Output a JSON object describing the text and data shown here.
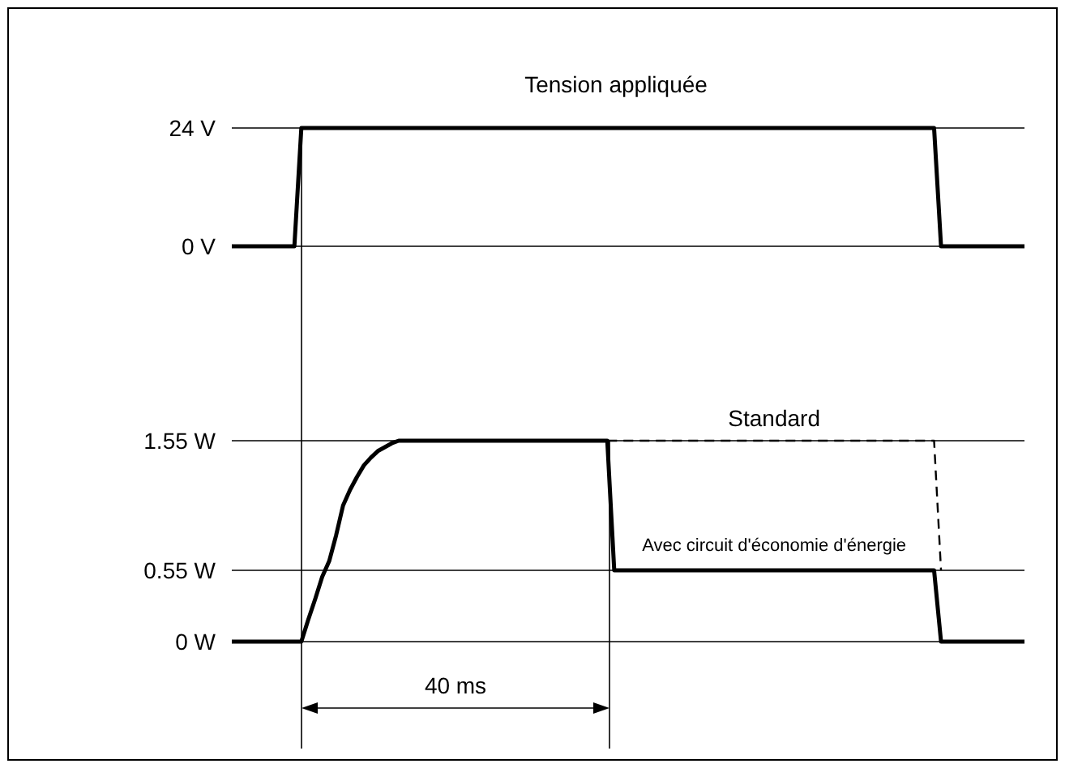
{
  "chart_data": [
    {
      "type": "line",
      "title": "Tension appliquée",
      "categories": [
        null,
        null,
        null,
        null,
        null,
        null,
        null,
        null,
        null,
        null,
        null,
        null,
        null,
        null,
        null,
        null,
        null,
        null,
        null,
        null,
        null,
        null,
        null,
        null,
        null,
        null,
        null,
        null,
        null,
        null,
        null,
        null,
        null,
        null,
        null,
        null,
        null,
        null,
        null,
        null,
        null,
        null,
        null,
        null,
        null,
        null,
        null,
        null,
        null,
        null,
        null,
        null,
        null,
        null,
        null,
        null,
        null,
        null,
        null,
        null,
        null,
        null,
        null,
        null,
        null,
        null,
        null,
        null,
        null,
        null,
        null,
        null,
        null,
        null,
        null,
        null,
        null,
        null,
        null,
        null,
        null,
        null,
        null,
        null,
        null,
        null,
        null,
        null,
        null,
        null,
        null,
        null,
        null,
        null,
        null,
        null,
        null,
        null,
        null,
        null,
        null,
        null,
        null,
        null,
        null,
        null,
        null,
        null,
        null,
        null,
        null,
        null,
        null,
        null,
        null
      ],
      "ylim": [
        0,
        24
      ],
      "yticks": [
        {
          "value": 0,
          "label": "0 V"
        },
        {
          "value": 24,
          "label": "24 V"
        }
      ],
      "tick_labels": "y",
      "grid": "y",
      "legend": false,
      "series": [
        {
          "color": "#000000",
          "values": [
            0,
            0,
            0,
            0,
            0,
            0,
            0,
            0,
            0,
            0,
            24,
            24,
            24,
            24,
            24,
            24,
            24,
            24,
            24,
            24,
            24,
            24,
            24,
            24,
            24,
            24,
            24,
            24,
            24,
            24,
            24,
            24,
            24,
            24,
            24,
            24,
            24,
            24,
            24,
            24,
            24,
            24,
            24,
            24,
            24,
            24,
            24,
            24,
            24,
            24,
            24,
            24,
            24,
            24,
            24,
            24,
            24,
            24,
            24,
            24,
            24,
            24,
            24,
            24,
            24,
            24,
            24,
            24,
            24,
            24,
            24,
            24,
            24,
            24,
            24,
            24,
            24,
            24,
            24,
            24,
            24,
            24,
            24,
            24,
            24,
            24,
            24,
            24,
            24,
            24,
            24,
            24,
            24,
            24,
            24,
            24,
            24,
            24,
            24,
            24,
            24,
            24,
            0,
            0,
            0,
            0,
            0,
            0,
            0,
            0,
            0,
            0,
            0,
            0,
            0
          ]
        }
      ]
    },
    {
      "type": "line",
      "categories": [
        null,
        null,
        null,
        null,
        null,
        null,
        null,
        null,
        null,
        null,
        null,
        null,
        null,
        null,
        null,
        null,
        null,
        null,
        null,
        null,
        null,
        null,
        null,
        null,
        null,
        null,
        null,
        null,
        null,
        null,
        null,
        null,
        null,
        null,
        null,
        null,
        null,
        null,
        null,
        null,
        null,
        null,
        null,
        null,
        null,
        null,
        null,
        null,
        null,
        null,
        null,
        null,
        null,
        null,
        null,
        null,
        null,
        null,
        null,
        null,
        null,
        null,
        null,
        null,
        null,
        null,
        null,
        null,
        null,
        null,
        null,
        null,
        null,
        null,
        null,
        null,
        null,
        null,
        null,
        null,
        null,
        null,
        null,
        null,
        null,
        null,
        null,
        null,
        null,
        null,
        null,
        null,
        null,
        null,
        null,
        null,
        null,
        null,
        null,
        null,
        null,
        null,
        null,
        null,
        null,
        null,
        null,
        null,
        null,
        null,
        null,
        null,
        null,
        null,
        null
      ],
      "ylim": [
        0,
        1.55
      ],
      "yticks": [
        {
          "value": 0,
          "label": "0 W"
        },
        {
          "value": 0.55,
          "label": "0.55 W"
        },
        {
          "value": 1.55,
          "label": "1.55 W"
        }
      ],
      "tick_labels": "y",
      "grid": "y",
      "legend": false,
      "annotations": [
        "40 ms"
      ],
      "series": [
        {
          "name": "Standard",
          "color": "#000000",
          "line_style": "dashed",
          "values": [
            null,
            null,
            null,
            null,
            null,
            null,
            null,
            null,
            null,
            null,
            null,
            null,
            null,
            null,
            null,
            null,
            null,
            null,
            null,
            null,
            null,
            null,
            null,
            null,
            null,
            null,
            null,
            null,
            null,
            null,
            null,
            null,
            null,
            null,
            null,
            null,
            null,
            null,
            null,
            null,
            null,
            null,
            null,
            null,
            null,
            null,
            null,
            null,
            null,
            null,
            null,
            null,
            null,
            null,
            1.55,
            1.55,
            1.55,
            1.55,
            1.55,
            1.55,
            1.55,
            1.55,
            1.55,
            1.55,
            1.55,
            1.55,
            1.55,
            1.55,
            1.55,
            1.55,
            1.55,
            1.55,
            1.55,
            1.55,
            1.55,
            1.55,
            1.55,
            1.55,
            1.55,
            1.55,
            1.55,
            1.55,
            1.55,
            1.55,
            1.55,
            1.55,
            1.55,
            1.55,
            1.55,
            1.55,
            1.55,
            1.55,
            1.55,
            1.55,
            1.55,
            1.55,
            1.55,
            1.55,
            1.55,
            1.55,
            1.55,
            1.55,
            0.55,
            null,
            null,
            null,
            null,
            null,
            null,
            null,
            null,
            null,
            null,
            null,
            null
          ]
        },
        {
          "name": "Avec circuit d'économie d'énergie",
          "color": "#000000",
          "line_style": "solid",
          "values": [
            0,
            0,
            0,
            0,
            0,
            0,
            0,
            0,
            0,
            0,
            0,
            0.17,
            0.33,
            0.5,
            0.62,
            0.82,
            1.05,
            1.17,
            1.27,
            1.36,
            1.42,
            1.47,
            1.5,
            1.53,
            1.55,
            1.55,
            1.55,
            1.55,
            1.55,
            1.55,
            1.55,
            1.55,
            1.55,
            1.55,
            1.55,
            1.55,
            1.55,
            1.55,
            1.55,
            1.55,
            1.55,
            1.55,
            1.55,
            1.55,
            1.55,
            1.55,
            1.55,
            1.55,
            1.55,
            1.55,
            1.55,
            1.55,
            1.55,
            1.55,
            1.55,
            0.55,
            0.55,
            0.55,
            0.55,
            0.55,
            0.55,
            0.55,
            0.55,
            0.55,
            0.55,
            0.55,
            0.55,
            0.55,
            0.55,
            0.55,
            0.55,
            0.55,
            0.55,
            0.55,
            0.55,
            0.55,
            0.55,
            0.55,
            0.55,
            0.55,
            0.55,
            0.55,
            0.55,
            0.55,
            0.55,
            0.55,
            0.55,
            0.55,
            0.55,
            0.55,
            0.55,
            0.55,
            0.55,
            0.55,
            0.55,
            0.55,
            0.55,
            0.55,
            0.55,
            0.55,
            0.55,
            0.55,
            0,
            0,
            0,
            0,
            0,
            0,
            0,
            0,
            0,
            0,
            0,
            0,
            0
          ]
        }
      ]
    }
  ]
}
